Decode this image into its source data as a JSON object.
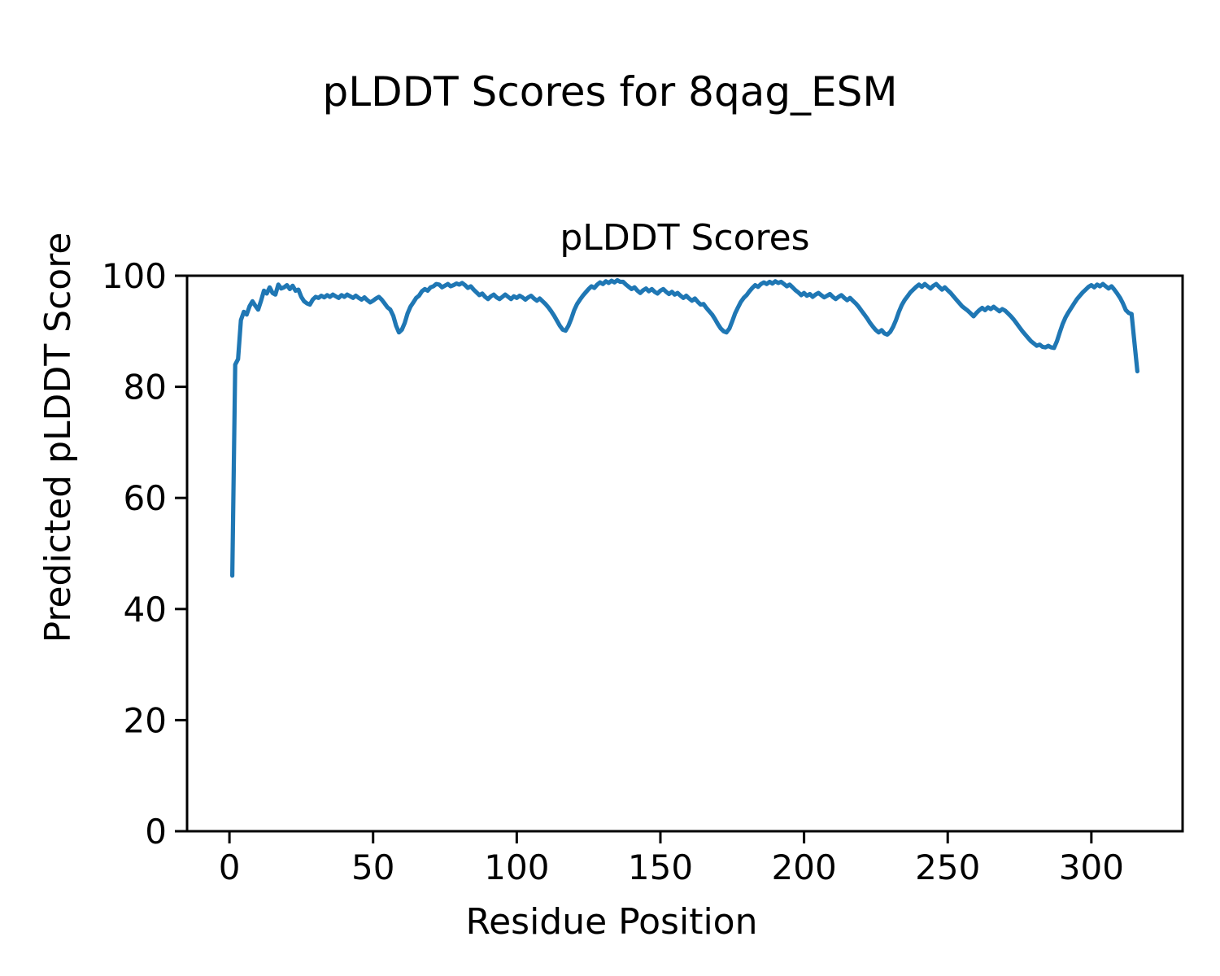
{
  "figure": {
    "suptitle": "pLDDT Scores for 8qag_ESM",
    "background_color": "#ffffff",
    "spine_color": "#000000",
    "text_color": "#000000"
  },
  "chart_data": {
    "type": "line",
    "title": "pLDDT Scores",
    "xlabel": "Residue Position",
    "ylabel": "Predicted pLDDT Score",
    "xlim": [
      -14.75,
      331.75
    ],
    "ylim": [
      0,
      100
    ],
    "x_ticks": [
      0,
      50,
      100,
      150,
      200,
      250,
      300
    ],
    "y_ticks": [
      0,
      20,
      40,
      60,
      80,
      100
    ],
    "grid": false,
    "legend": "none",
    "line_color": "#1f77b4",
    "line_width": 5.2,
    "series": [
      {
        "name": "pLDDT",
        "x_start": 1,
        "x_step": 1,
        "y": [
          46.0,
          84.0,
          85.0,
          92.0,
          93.5,
          93.0,
          94.5,
          95.4,
          94.6,
          93.9,
          95.5,
          97.3,
          96.8,
          97.9,
          96.9,
          96.6,
          98.4,
          97.7,
          97.9,
          98.3,
          97.6,
          98.2,
          97.3,
          97.5,
          96.2,
          95.4,
          95.0,
          94.8,
          95.7,
          96.2,
          96.0,
          96.4,
          96.1,
          96.5,
          96.2,
          96.6,
          96.3,
          96.0,
          96.5,
          96.2,
          96.6,
          96.3,
          96.0,
          96.4,
          96.0,
          95.7,
          96.1,
          95.6,
          95.2,
          95.5,
          95.9,
          96.2,
          95.7,
          95.0,
          94.3,
          93.9,
          92.8,
          91.0,
          89.8,
          90.3,
          91.5,
          93.2,
          94.4,
          95.2,
          96.0,
          96.4,
          97.2,
          97.6,
          97.3,
          97.9,
          98.1,
          98.5,
          98.4,
          97.9,
          98.2,
          98.5,
          98.1,
          98.3,
          98.6,
          98.4,
          98.7,
          98.3,
          97.8,
          98.1,
          97.5,
          97.0,
          96.5,
          96.8,
          96.2,
          95.8,
          96.3,
          96.6,
          96.1,
          95.8,
          96.2,
          96.6,
          96.2,
          95.8,
          96.3,
          96.0,
          96.4,
          96.1,
          95.7,
          96.1,
          96.4,
          95.9,
          95.5,
          95.9,
          95.4,
          94.9,
          94.3,
          93.6,
          92.8,
          91.9,
          91.0,
          90.3,
          90.1,
          91.0,
          92.3,
          93.8,
          94.9,
          95.7,
          96.4,
          97.0,
          97.6,
          98.1,
          97.8,
          98.4,
          98.8,
          98.5,
          99.0,
          98.7,
          99.1,
          98.8,
          99.2,
          98.9,
          98.9,
          98.4,
          98.0,
          97.6,
          97.9,
          97.3,
          96.9,
          97.4,
          97.7,
          97.2,
          97.6,
          97.1,
          96.8,
          97.3,
          97.6,
          97.1,
          96.7,
          97.1,
          96.6,
          96.9,
          96.4,
          96.0,
          96.4,
          95.9,
          95.5,
          95.9,
          95.3,
          94.8,
          94.9,
          94.2,
          93.6,
          93.0,
          92.2,
          91.3,
          90.5,
          90.0,
          89.8,
          90.5,
          91.8,
          93.2,
          94.3,
          95.3,
          96.0,
          96.5,
          97.2,
          97.8,
          98.3,
          98.0,
          98.5,
          98.8,
          98.5,
          98.9,
          98.6,
          99.0,
          98.7,
          98.9,
          98.5,
          98.1,
          98.4,
          97.9,
          97.4,
          97.0,
          96.5,
          96.9,
          96.4,
          96.7,
          96.2,
          96.6,
          96.9,
          96.5,
          96.1,
          96.4,
          96.7,
          96.2,
          95.8,
          96.2,
          96.5,
          96.0,
          95.6,
          96.0,
          95.5,
          95.0,
          94.4,
          93.7,
          93.0,
          92.3,
          91.5,
          90.8,
          90.2,
          89.8,
          90.2,
          89.6,
          89.4,
          89.9,
          90.8,
          92.0,
          93.5,
          94.7,
          95.6,
          96.3,
          97.0,
          97.5,
          98.0,
          98.4,
          98.0,
          98.5,
          98.1,
          97.7,
          98.2,
          98.5,
          98.0,
          97.5,
          97.9,
          97.4,
          96.9,
          96.3,
          95.7,
          95.1,
          94.5,
          94.1,
          93.7,
          93.2,
          92.7,
          93.3,
          93.8,
          94.2,
          93.8,
          94.3,
          94.0,
          94.4,
          94.0,
          93.6,
          94.0,
          93.7,
          93.2,
          92.7,
          92.1,
          91.4,
          90.7,
          90.0,
          89.4,
          88.8,
          88.2,
          87.8,
          87.4,
          87.6,
          87.2,
          87.1,
          87.4,
          87.1,
          87.0,
          88.2,
          89.8,
          91.3,
          92.5,
          93.4,
          94.2,
          95.0,
          95.8,
          96.4,
          97.0,
          97.5,
          98.0,
          98.3,
          97.9,
          98.4,
          98.1,
          98.5,
          98.1,
          97.7,
          98.1,
          97.5,
          96.8,
          96.0,
          95.0,
          93.8,
          93.3,
          93.1,
          88.0,
          82.8
        ]
      }
    ]
  }
}
